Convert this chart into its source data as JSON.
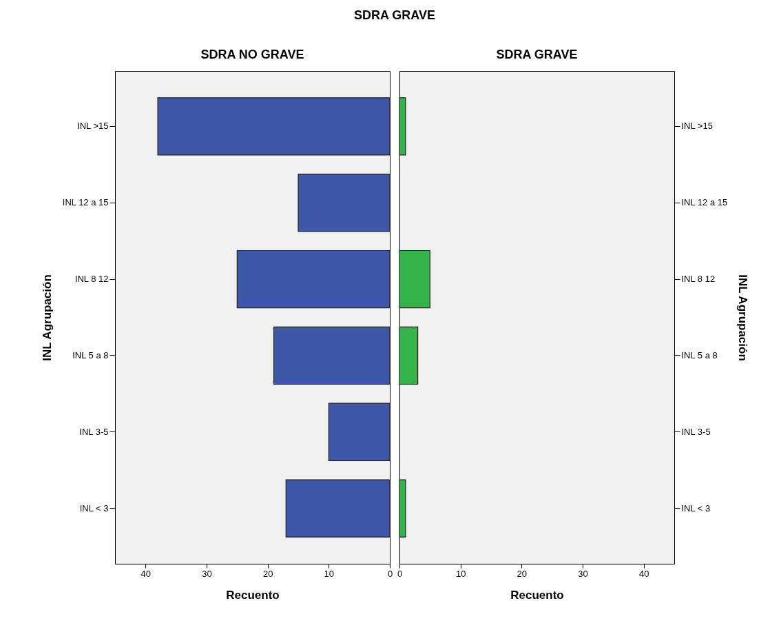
{
  "chart_data": [
    {
      "type": "bar",
      "orientation": "horizontal",
      "title": "SDRA NO GRAVE",
      "annotations": [
        "SDRA GRAVE"
      ],
      "xlabel": "Recuento",
      "ylabel": "INL Agrupación",
      "categories": [
        "INL >15",
        "INL 12 a 15",
        "INL 8  12",
        "INL 5 a 8",
        "INL 3-5",
        "INL < 3"
      ],
      "series": [
        {
          "color": "#3f57a8",
          "values": [
            38,
            15,
            25,
            19,
            10,
            17
          ]
        }
      ],
      "xlim": [
        45,
        0
      ],
      "xticks": [
        40,
        30,
        20,
        10,
        0
      ],
      "grid": false,
      "legend": false
    },
    {
      "type": "bar",
      "orientation": "horizontal",
      "title": "SDRA GRAVE",
      "xlabel": "Recuento",
      "ylabel": "INL Agrupación",
      "categories": [
        "INL >15",
        "INL 12 a 15",
        "INL 8  12",
        "INL 5 a 8",
        "INL 3-5",
        "INL < 3"
      ],
      "series": [
        {
          "color": "#33b449",
          "values": [
            1,
            0,
            5,
            3,
            0,
            1
          ]
        }
      ],
      "xlim": [
        0,
        45
      ],
      "xticks": [
        0,
        10,
        20,
        30,
        40
      ],
      "grid": false,
      "legend": false
    }
  ]
}
